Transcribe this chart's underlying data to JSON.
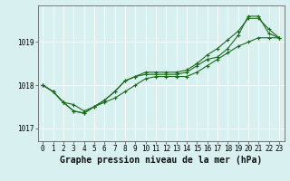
{
  "bg_color": "#d8f0f0",
  "grid_color": "#ffffff",
  "line_color": "#1a6b1a",
  "title": "Graphe pression niveau de la mer (hPa)",
  "xlim": [
    -0.5,
    23.5
  ],
  "ylim": [
    1016.7,
    1019.85
  ],
  "yticks": [
    1017,
    1018,
    1019
  ],
  "xticks": [
    0,
    1,
    2,
    3,
    4,
    5,
    6,
    7,
    8,
    9,
    10,
    11,
    12,
    13,
    14,
    15,
    16,
    17,
    18,
    19,
    20,
    21,
    22,
    23
  ],
  "series1": {
    "x": [
      0,
      1,
      2,
      3,
      4,
      5,
      6,
      7,
      8,
      9,
      10,
      11,
      12,
      13,
      14,
      15,
      16,
      17,
      18,
      19,
      20,
      21,
      22,
      23
    ],
    "y": [
      1018.0,
      1017.85,
      1017.6,
      1017.55,
      1017.4,
      1017.5,
      1017.6,
      1017.7,
      1017.85,
      1018.0,
      1018.15,
      1018.2,
      1018.2,
      1018.2,
      1018.2,
      1018.3,
      1018.45,
      1018.6,
      1018.75,
      1018.9,
      1019.0,
      1019.1,
      1019.1,
      1019.1
    ]
  },
  "series2": {
    "x": [
      0,
      1,
      2,
      3,
      4,
      5,
      6,
      7,
      8,
      9,
      10,
      11,
      12,
      13,
      14,
      15,
      16,
      17,
      18,
      19,
      20,
      21,
      22,
      23
    ],
    "y": [
      1018.0,
      1017.85,
      1017.6,
      1017.4,
      1017.35,
      1017.5,
      1017.65,
      1017.85,
      1018.1,
      1018.2,
      1018.3,
      1018.3,
      1018.3,
      1018.3,
      1018.35,
      1018.5,
      1018.7,
      1018.85,
      1019.05,
      1019.25,
      1019.55,
      1019.55,
      1019.3,
      1019.1
    ]
  },
  "series3": {
    "x": [
      0,
      1,
      2,
      3,
      4,
      5,
      6,
      7,
      8,
      9,
      10,
      11,
      12,
      13,
      14,
      15,
      16,
      17,
      18,
      19,
      20,
      21,
      22,
      23
    ],
    "y": [
      1018.0,
      1017.85,
      1017.6,
      1017.4,
      1017.35,
      1017.5,
      1017.65,
      1017.85,
      1018.1,
      1018.2,
      1018.25,
      1018.25,
      1018.25,
      1018.25,
      1018.3,
      1018.45,
      1018.6,
      1018.65,
      1018.85,
      1019.15,
      1019.6,
      1019.6,
      1019.2,
      1019.1
    ]
  },
  "title_fontsize": 7.0,
  "tick_fontsize": 5.5,
  "marker": "+",
  "marker_size": 3,
  "linewidth": 0.8
}
